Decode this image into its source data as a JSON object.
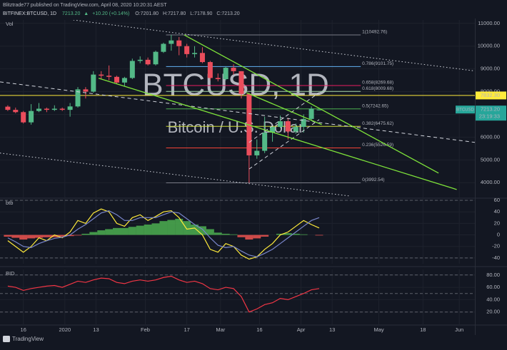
{
  "header": {
    "publisher": "Blitztrade77 published on TradingView.com, April 08, 2020 10:20:31 AEST",
    "symbol": "BITFINEX:BTCUSD, 1D",
    "last": "7213.20",
    "arrow": "▲",
    "change": "+10.20 (+0.14%)",
    "ohlc": [
      "O:7201.80",
      "H:7217.80",
      "L:7178.90",
      "C:7213.20"
    ]
  },
  "chart_data": [
    {
      "type": "candlestick",
      "pane_label": "Vol",
      "watermark": [
        "BTCUSD, 1D",
        "Bitcoin / U.S. Dollar"
      ],
      "x": [
        0,
        3,
        6,
        9,
        12,
        15,
        18,
        21,
        24,
        27,
        30,
        33,
        36,
        39,
        42,
        45,
        48,
        51,
        54,
        57,
        60,
        63,
        66,
        69,
        72,
        75,
        78,
        81,
        84,
        87,
        90,
        93,
        96,
        99,
        102,
        105,
        108,
        111,
        114,
        117,
        120
      ],
      "open": [
        7340,
        7200,
        7100,
        6650,
        7150,
        7250,
        7200,
        7250,
        7200,
        7350,
        8100,
        8000,
        8750,
        8700,
        8650,
        8400,
        8600,
        9350,
        9400,
        9200,
        9750,
        10100,
        10250,
        10000,
        9650,
        9700,
        9300,
        8600,
        8550,
        9050,
        8900,
        7900,
        5200,
        5400,
        6200,
        6450,
        6700,
        6250,
        6450,
        6800,
        7201.8
      ],
      "high": [
        7400,
        7300,
        7150,
        7450,
        7500,
        7300,
        7400,
        7300,
        7500,
        8200,
        8200,
        8900,
        8900,
        9150,
        8700,
        8650,
        9450,
        9550,
        9500,
        9800,
        10150,
        10492.76,
        10400,
        10100,
        10000,
        9950,
        9350,
        8800,
        9100,
        9200,
        8900,
        7950,
        5900,
        6900,
        6450,
        6950,
        6850,
        6600,
        7000,
        7350,
        7217.8
      ],
      "low": [
        7150,
        7050,
        6600,
        6550,
        7100,
        7100,
        7150,
        7150,
        6900,
        7300,
        7700,
        7950,
        8550,
        8500,
        8350,
        8250,
        8550,
        9250,
        9150,
        9150,
        9700,
        9800,
        9600,
        9500,
        9500,
        9250,
        8500,
        8450,
        8500,
        8750,
        7700,
        3992.54,
        5050,
        5300,
        5800,
        6400,
        5900,
        6150,
        6200,
        6700,
        7178.9
      ],
      "close": [
        7200,
        7100,
        6650,
        7150,
        7250,
        7200,
        7250,
        7200,
        7350,
        8100,
        8000,
        8750,
        8700,
        8650,
        8400,
        8600,
        9350,
        9400,
        9200,
        9750,
        10100,
        10250,
        10000,
        9650,
        9700,
        9300,
        8600,
        8550,
        9050,
        8900,
        7900,
        5200,
        5400,
        6200,
        6450,
        6700,
        6250,
        6450,
        6800,
        7250,
        7213.2
      ],
      "up_color": "#53b987",
      "down_color": "#eb4d5c",
      "xlim": [
        -3,
        180
      ],
      "ylim": [
        3350,
        11150
      ],
      "xticks": [
        {
          "value": 6,
          "label": "16"
        },
        {
          "value": 22,
          "label": "2020"
        },
        {
          "value": 34,
          "label": "13"
        },
        {
          "value": 53,
          "label": "Feb"
        },
        {
          "value": 69,
          "label": "17"
        },
        {
          "value": 82,
          "label": "Mar"
        },
        {
          "value": 97,
          "label": "16"
        },
        {
          "value": 113,
          "label": "Apr"
        },
        {
          "value": 125,
          "label": "13"
        },
        {
          "value": 143,
          "label": "May"
        },
        {
          "value": 160,
          "label": "18"
        },
        {
          "value": 174,
          "label": "Jun"
        }
      ],
      "yticks": [
        {
          "value": 4000,
          "label": "4000.00"
        },
        {
          "value": 5000,
          "label": "5000.00"
        },
        {
          "value": 6000,
          "label": "6000.00"
        },
        {
          "value": 7000,
          "label": "7000.00"
        },
        {
          "value": 8000,
          "label": "8000.00"
        },
        {
          "value": 9000,
          "label": "9000.00"
        },
        {
          "value": 10000,
          "label": "10000.00"
        },
        {
          "value": 11000,
          "label": "11000.00"
        }
      ],
      "grid": true,
      "fib": {
        "start": 61,
        "end": 136,
        "levels": [
          {
            "value": 10492.76,
            "label": "1(10492.76)",
            "color": "#787b86"
          },
          {
            "value": 9101.75,
            "label": "0.786(9101.75)",
            "color": "#64b5f6"
          },
          {
            "value": 8269.68,
            "label": "0.658(8269.68)",
            "color": "#e91e63"
          },
          {
            "value": 8009.68,
            "label": "0.618(8009.68)",
            "color": "#a5d6a7"
          },
          {
            "value": 7242.65,
            "label": "0.5(7242.65)",
            "color": "#4caf50"
          },
          {
            "value": 6475.62,
            "label": "0.382(6475.62)",
            "color": "#cddc39"
          },
          {
            "value": 5526.59,
            "label": "0.236(5526.59)",
            "color": "#f44336"
          },
          {
            "value": 3992.54,
            "label": "0(3992.54)",
            "color": "#787b86"
          }
        ]
      },
      "trend_lines": [
        {
          "points": [
            [
              -3,
              11560
            ],
            [
              180,
              8910
            ]
          ],
          "color": "#d1d4dc",
          "dash": "dotted"
        },
        {
          "points": [
            [
              -3,
              8430
            ],
            [
              180,
              5770
            ]
          ],
          "color": "#d1d4dc",
          "dash": "dashed"
        },
        {
          "points": [
            [
              -3,
              5300
            ],
            [
              132,
              3410
            ]
          ],
          "color": "#d1d4dc",
          "dash": "dotted"
        },
        {
          "points": [
            [
              93,
              5770
            ],
            [
              120,
              7960
            ]
          ],
          "color": "#d1d4dc",
          "dash": "dashed"
        },
        {
          "points": [
            [
              93,
              4600
            ],
            [
              120,
              6770
            ]
          ],
          "color": "#d1d4dc",
          "dash": "dashed"
        },
        {
          "points": [
            [
              68,
              10490
            ],
            [
              166,
              4420
            ]
          ],
          "color": "#7ee33a",
          "dash": "solid"
        },
        {
          "points": [
            [
              35,
              8590
            ],
            [
              173,
              3700
            ]
          ],
          "color": "#7ee33a",
          "dash": "solid"
        },
        {
          "points": [
            [
              92,
              7950
            ],
            [
              121,
              6550
            ]
          ],
          "color": "#7ee33a",
          "dash": "solid"
        }
      ],
      "price_lines": [
        {
          "value": 7832.3,
          "label": "7832.30",
          "color": "#ffeb3b"
        }
      ],
      "last_price": {
        "symbol": "BTCUSD",
        "value": 7213.2,
        "label": "7213.20",
        "countdown": "23:19:33",
        "color": "#26a69a"
      }
    },
    {
      "type": "line",
      "pane_label": "btb",
      "x": [
        0,
        3,
        6,
        9,
        12,
        15,
        18,
        21,
        24,
        27,
        30,
        33,
        36,
        39,
        42,
        45,
        48,
        51,
        54,
        57,
        60,
        63,
        66,
        69,
        72,
        75,
        78,
        81,
        84,
        87,
        90,
        93,
        96,
        99,
        102,
        105,
        108,
        111,
        114,
        117,
        120
      ],
      "series": [
        {
          "color": "#ffeb3b",
          "values": [
            -10,
            -20,
            -30,
            -20,
            -5,
            -10,
            0,
            -5,
            5,
            25,
            20,
            38,
            45,
            40,
            20,
            15,
            30,
            35,
            25,
            32,
            40,
            42,
            30,
            10,
            12,
            0,
            -25,
            -30,
            -15,
            -20,
            -35,
            -42,
            -38,
            -25,
            -15,
            0,
            5,
            15,
            25,
            18,
            12
          ]
        },
        {
          "color": "#7986cb",
          "values": [
            -5,
            -12,
            -20,
            -22,
            -15,
            -10,
            -6,
            -4,
            0,
            10,
            18,
            28,
            38,
            42,
            35,
            25,
            25,
            30,
            30,
            30,
            35,
            40,
            38,
            28,
            18,
            10,
            -5,
            -18,
            -22,
            -20,
            -28,
            -35,
            -38,
            -32,
            -25,
            -15,
            -5,
            5,
            15,
            25,
            30
          ]
        }
      ],
      "histogram": {
        "up_color": "#4caf50",
        "down_color": "#ef5350",
        "values": [
          -3,
          -5,
          -8,
          -6,
          -5,
          -4,
          -4,
          -3,
          -2,
          -1,
          2,
          5,
          8,
          10,
          12,
          12,
          14,
          16,
          18,
          20,
          24,
          26,
          28,
          24,
          18,
          15,
          10,
          4,
          2,
          1,
          -4,
          -8,
          -6,
          -3,
          0,
          2,
          3,
          2,
          1,
          0,
          -1
        ]
      },
      "xlim": [
        -3,
        180
      ],
      "ylim": [
        -50,
        62.5
      ],
      "yticks": [
        60,
        40,
        20,
        0,
        -20,
        -40
      ],
      "levels": [
        60,
        -40
      ],
      "grid": true
    },
    {
      "type": "line",
      "pane_label": "BID",
      "x": [
        0,
        3,
        6,
        9,
        12,
        15,
        18,
        21,
        24,
        27,
        30,
        33,
        36,
        39,
        42,
        45,
        48,
        51,
        54,
        57,
        60,
        63,
        66,
        69,
        72,
        75,
        78,
        81,
        84,
        87,
        90,
        93,
        96,
        99,
        102,
        105,
        108,
        111,
        114,
        117,
        120
      ],
      "series": [
        {
          "color": "#f23645",
          "values": [
            62,
            60,
            55,
            58,
            60,
            62,
            63,
            60,
            65,
            70,
            68,
            72,
            75,
            74,
            68,
            66,
            70,
            72,
            70,
            72,
            76,
            78,
            72,
            68,
            70,
            66,
            58,
            56,
            60,
            58,
            45,
            20,
            25,
            32,
            35,
            42,
            40,
            45,
            50,
            56,
            58
          ]
        }
      ],
      "xlim": [
        -3,
        180
      ],
      "ylim": [
        0,
        89
      ],
      "yticks": [
        {
          "value": 80,
          "label": "80.00"
        },
        {
          "value": 60,
          "label": "60.00"
        },
        {
          "value": 40,
          "label": "40.00"
        },
        {
          "value": 20,
          "label": "20.00"
        }
      ],
      "levels": [
        80,
        50,
        20
      ],
      "grid": true
    }
  ],
  "footer": {
    "logo": "TradingView"
  }
}
